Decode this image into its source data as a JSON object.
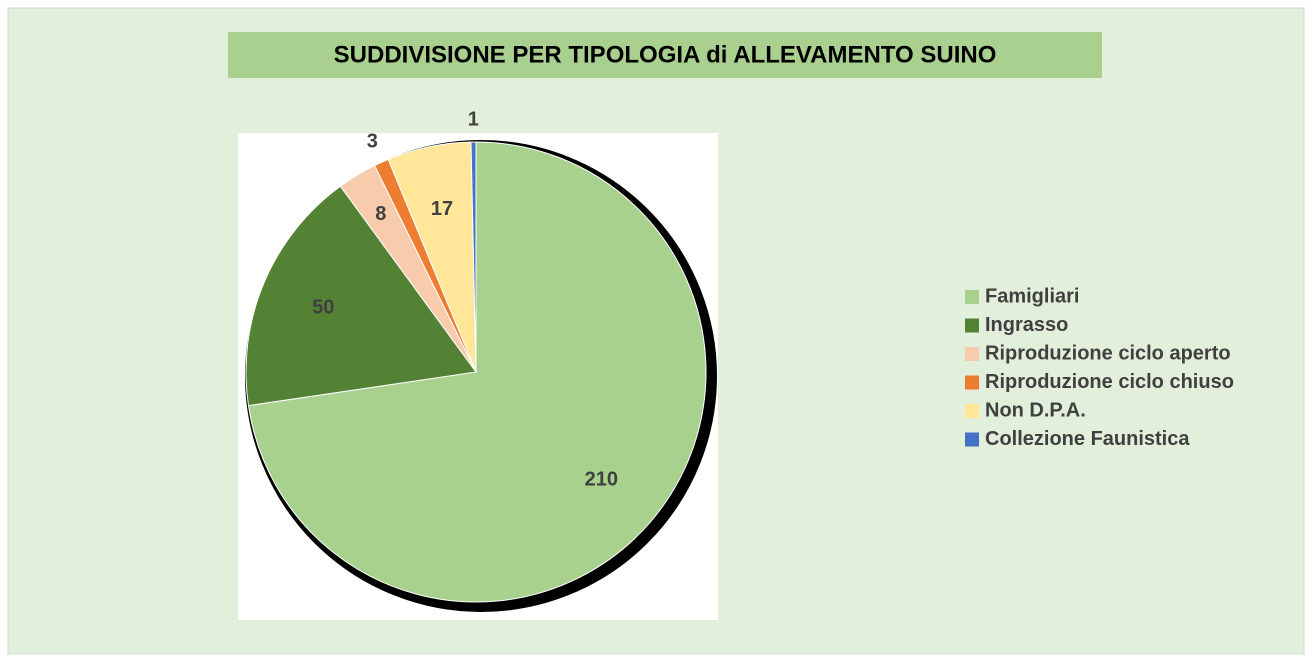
{
  "chart_data": {
    "type": "pie",
    "title": "SUDDIVISIONE PER TIPOLOGIA di ALLEVAMENTO SUINO",
    "categories": [
      "Famigliari",
      "Ingrasso",
      "Riproduzione ciclo aperto",
      "Riproduzione ciclo chiuso",
      "Non D.P.A.",
      "Collezione Faunistica"
    ],
    "values": [
      210,
      50,
      8,
      3,
      17,
      1
    ],
    "colors": [
      "#a9d18e",
      "#548235",
      "#f8cbad",
      "#ed7d31",
      "#ffe699",
      "#4472c4"
    ],
    "legend": "right"
  }
}
